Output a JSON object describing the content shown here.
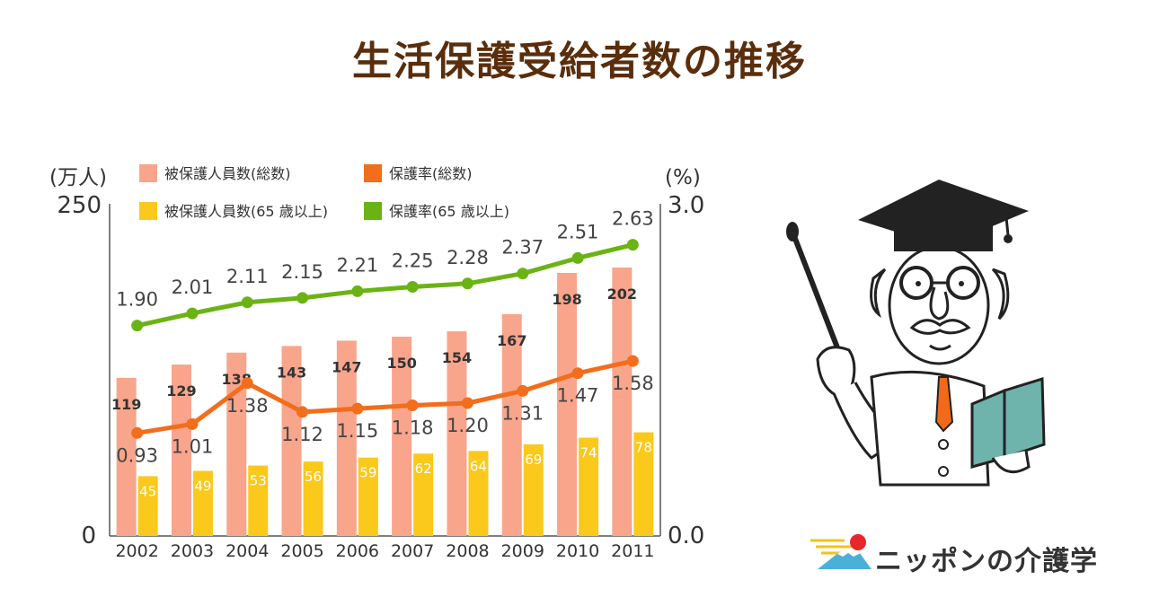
{
  "title": "生活保護受給者数の推移",
  "logo_text": "ニッポンの介護学",
  "chart_data": {
    "type": "bar",
    "categories": [
      "2002",
      "2003",
      "2004",
      "2005",
      "2006",
      "2007",
      "2008",
      "2009",
      "2010",
      "2011"
    ],
    "left_axis": {
      "unit_label": "(万人)",
      "range": [
        0,
        250
      ],
      "tick_labels": [
        "0",
        "250"
      ]
    },
    "right_axis": {
      "unit_label": "(%)",
      "range": [
        0.0,
        3.0
      ],
      "tick_labels": [
        "0.0",
        "3.0"
      ]
    },
    "grid": false,
    "legend_position": "top",
    "series": [
      {
        "name": "被保護人員数(総数)",
        "kind": "bar",
        "axis": "left",
        "color": "#f8a58c",
        "values": [
          119,
          129,
          138,
          143,
          147,
          150,
          154,
          167,
          198,
          202
        ]
      },
      {
        "name": "被保護人員数(65 歳以上)",
        "kind": "bar",
        "axis": "left",
        "color": "#fbc81c",
        "values": [
          45,
          49,
          53,
          56,
          59,
          62,
          64,
          69,
          74,
          78
        ]
      },
      {
        "name": "保護率(総数)",
        "kind": "line",
        "axis": "right",
        "color": "#f26d1c",
        "values": [
          0.93,
          1.01,
          1.38,
          1.12,
          1.15,
          1.18,
          1.2,
          1.31,
          1.47,
          1.58
        ]
      },
      {
        "name": "保護率(65 歳以上)",
        "kind": "line",
        "axis": "right",
        "color": "#6bb314",
        "values": [
          1.9,
          2.01,
          2.11,
          2.15,
          2.21,
          2.25,
          2.28,
          2.37,
          2.51,
          2.63
        ]
      }
    ]
  }
}
